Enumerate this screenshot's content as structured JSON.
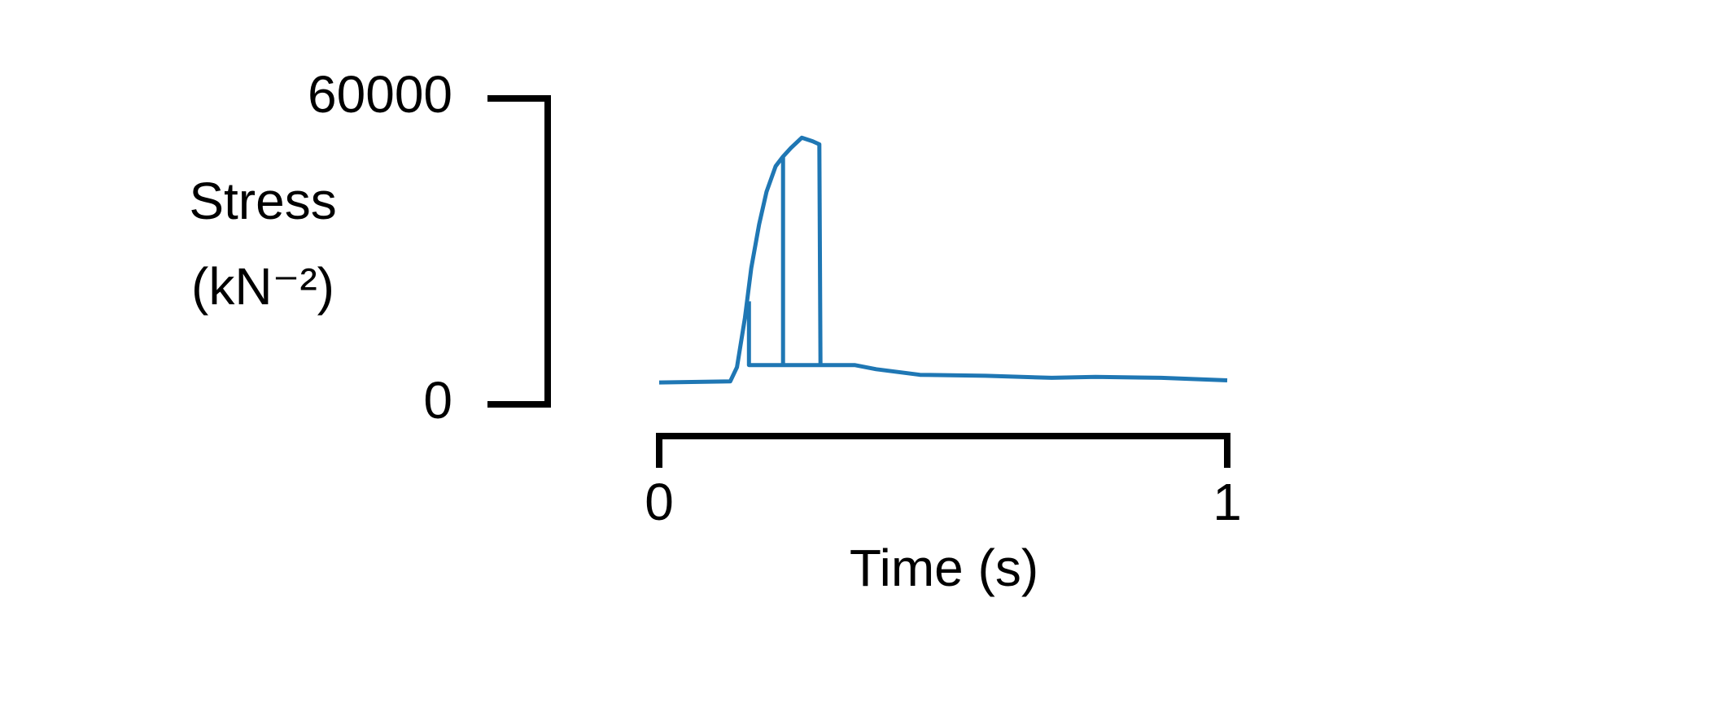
{
  "chart_data": {
    "type": "line",
    "ylabel_lines": [
      "Stress",
      "(kN⁻²)"
    ],
    "xlabel": "Time (s)",
    "xlim": [
      0,
      1
    ],
    "xticks": [
      0,
      1
    ],
    "ylim": [
      0,
      60000
    ],
    "yticks": [
      0,
      60000
    ],
    "series": [
      {
        "color": "#1f77b4",
        "x": [
          0,
          0.125,
          0.137,
          0.151,
          0.162,
          0.176,
          0.189,
          0.205,
          0.218,
          0.232,
          0.251,
          0.27,
          0.282,
          0.284,
          0.344,
          0.382,
          0.459,
          0.575,
          0.691,
          0.768,
          0.884,
          1.0,
          null,
          0.158,
          0.158,
          0.284,
          null,
          0.218,
          0.218
        ],
        "values": [
          4300,
          4500,
          7300,
          17000,
          26700,
          35300,
          41700,
          46700,
          48600,
          50300,
          52300,
          51600,
          51000,
          7700,
          7700,
          6900,
          5800,
          5600,
          5200,
          5400,
          5200,
          4700,
          null,
          20200,
          7700,
          7700,
          null,
          48600,
          7700
        ]
      }
    ]
  }
}
